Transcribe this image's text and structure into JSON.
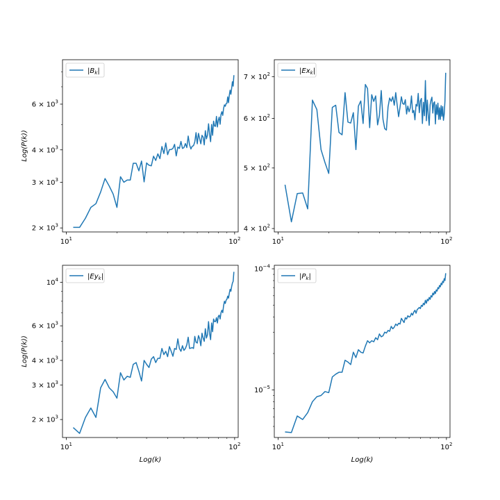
{
  "chart_data": [
    {
      "type": "line",
      "title": "",
      "xscale": "log",
      "yscale": "log",
      "xlim": [
        9.5,
        105
      ],
      "ylim": [
        1930,
        8900
      ],
      "xlabel": "",
      "ylabel": "Log(P(k))",
      "x_ticks": [
        {
          "value": 10,
          "label": "10^1"
        },
        {
          "value": 100,
          "label": "10^2"
        }
      ],
      "y_ticks": [
        {
          "value": 2000,
          "label": "2 × 10^3"
        },
        {
          "value": 3000,
          "label": "3 × 10^3"
        },
        {
          "value": 4000,
          "label": "4 × 10^3"
        },
        {
          "value": 6000,
          "label": "6 × 10^3"
        }
      ],
      "y_minor": [
        5000,
        7000,
        8000
      ],
      "legend": {
        "placement": "top-left",
        "entry": "|B_k|"
      },
      "series": [
        {
          "name": "|B_k|",
          "x": [
            11,
            12,
            13,
            14,
            15,
            16,
            17,
            18,
            19,
            20,
            21,
            22,
            23,
            24,
            25,
            26,
            27,
            28,
            29,
            30,
            31,
            32,
            33,
            34,
            35,
            36,
            37,
            38,
            39,
            40,
            41,
            42,
            43,
            44,
            45,
            46,
            47,
            48,
            49,
            50,
            51,
            52,
            53,
            54,
            55,
            56,
            57,
            58,
            59,
            60,
            61,
            62,
            63,
            64,
            65,
            66,
            67,
            68,
            69,
            70,
            71,
            72,
            73,
            74,
            75,
            76,
            77,
            78,
            79,
            80,
            81,
            82,
            83,
            84,
            85,
            86,
            87,
            88,
            89,
            90,
            91,
            92,
            93,
            94,
            95,
            96,
            97,
            98,
            99
          ],
          "y": [
            2010,
            2010,
            2180,
            2400,
            2480,
            2750,
            3100,
            2900,
            2700,
            2400,
            3150,
            3000,
            3060,
            3060,
            3550,
            3550,
            3320,
            3620,
            3010,
            3560,
            3490,
            3470,
            3780,
            3640,
            3860,
            3700,
            4120,
            3870,
            4250,
            3830,
            4010,
            4010,
            4050,
            4200,
            3790,
            4100,
            4050,
            4310,
            4050,
            4080,
            4230,
            4080,
            4520,
            4180,
            4030,
            4130,
            4150,
            4290,
            4660,
            4220,
            4630,
            4410,
            4220,
            4550,
            4480,
            4180,
            4740,
            4410,
            4560,
            5040,
            4590,
            4300,
            5010,
            4550,
            5160,
            4940,
            4930,
            5380,
            4900,
            5200,
            5350,
            5020,
            5470,
            5610,
            5430,
            5780,
            5960,
            5890,
            6030,
            6050,
            6400,
            6080,
            6500,
            6790,
            6550,
            6900,
            7320,
            7040,
            7760
          ]
        }
      ]
    },
    {
      "type": "line",
      "title": "",
      "xscale": "log",
      "yscale": "log",
      "xlim": [
        9.5,
        105
      ],
      "ylim": [
        395,
        745
      ],
      "xlabel": "",
      "ylabel": "",
      "x_ticks": [
        {
          "value": 10,
          "label": "10^1"
        },
        {
          "value": 100,
          "label": "10^2"
        }
      ],
      "y_ticks": [
        {
          "value": 400,
          "label": "4 × 10^2"
        },
        {
          "value": 500,
          "label": "5 × 10^2"
        },
        {
          "value": 600,
          "label": "6 × 10^2"
        },
        {
          "value": 700,
          "label": "7 × 10^2"
        }
      ],
      "y_minor": [],
      "legend": {
        "placement": "top-left",
        "entry": "|Ex_k|"
      },
      "series": [
        {
          "name": "|Ex_k|",
          "x": [
            11,
            12,
            13,
            14,
            15,
            16,
            17,
            18,
            19,
            20,
            21,
            22,
            23,
            24,
            25,
            26,
            27,
            28,
            29,
            30,
            31,
            32,
            33,
            34,
            35,
            36,
            37,
            38,
            39,
            40,
            41,
            42,
            43,
            44,
            45,
            46,
            47,
            48,
            49,
            50,
            51,
            52,
            53,
            54,
            55,
            56,
            57,
            58,
            59,
            60,
            61,
            62,
            63,
            64,
            65,
            66,
            67,
            68,
            69,
            70,
            71,
            72,
            73,
            74,
            75,
            76,
            77,
            78,
            79,
            80,
            81,
            82,
            83,
            84,
            85,
            86,
            87,
            88,
            89,
            90,
            91,
            92,
            93,
            94,
            95,
            96,
            97,
            98,
            99
          ],
          "y": [
            470,
            410,
            455,
            456,
            430,
            642,
            620,
            535,
            510,
            490,
            625,
            630,
            570,
            565,
            660,
            592,
            590,
            613,
            535,
            628,
            640,
            589,
            680,
            670,
            580,
            655,
            639,
            652,
            586,
            607,
            665,
            598,
            578,
            575,
            626,
            647,
            639,
            650,
            630,
            660,
            630,
            604,
            625,
            650,
            634,
            632,
            643,
            610,
            628,
            615,
            624,
            652,
            613,
            618,
            597,
            632,
            628,
            658,
            613,
            640,
            646,
            589,
            637,
            606,
            690,
            595,
            642,
            608,
            585,
            631,
            642,
            649,
            612,
            635,
            638,
            588,
            631,
            609,
            635,
            598,
            624,
            598,
            629,
            605,
            627,
            596,
            609,
            640,
            710
          ]
        }
      ]
    },
    {
      "type": "line",
      "title": "",
      "xscale": "log",
      "yscale": "log",
      "xlim": [
        9.5,
        105
      ],
      "ylim": [
        1620,
        12200
      ],
      "xlabel": "Log(k)",
      "ylabel": "Log(P(k))",
      "x_ticks": [
        {
          "value": 10,
          "label": "10^1"
        },
        {
          "value": 100,
          "label": "10^2"
        }
      ],
      "y_ticks": [
        {
          "value": 2000,
          "label": "2 × 10^3"
        },
        {
          "value": 3000,
          "label": "3 × 10^3"
        },
        {
          "value": 4000,
          "label": "4 × 10^3"
        },
        {
          "value": 6000,
          "label": "6 × 10^3"
        },
        {
          "value": 10000,
          "label": "10^4"
        }
      ],
      "y_minor": [
        5000,
        7000,
        8000,
        9000
      ],
      "legend": {
        "placement": "top-left",
        "entry": "|Ey_k|"
      },
      "series": [
        {
          "name": "|Ey_k|",
          "x": [
            11,
            12,
            13,
            14,
            15,
            16,
            17,
            18,
            19,
            20,
            21,
            22,
            23,
            24,
            25,
            26,
            27,
            28,
            29,
            30,
            31,
            32,
            33,
            34,
            35,
            36,
            37,
            38,
            39,
            40,
            41,
            42,
            43,
            44,
            45,
            46,
            47,
            48,
            49,
            50,
            51,
            52,
            53,
            54,
            55,
            56,
            57,
            58,
            59,
            60,
            61,
            62,
            63,
            64,
            65,
            66,
            67,
            68,
            69,
            70,
            71,
            72,
            73,
            74,
            75,
            76,
            77,
            78,
            79,
            80,
            81,
            82,
            83,
            84,
            85,
            86,
            87,
            88,
            89,
            90,
            91,
            92,
            93,
            94,
            95,
            96,
            97,
            98,
            99
          ],
          "y": [
            1820,
            1700,
            2050,
            2290,
            2050,
            2900,
            3200,
            2900,
            2770,
            2570,
            3460,
            3180,
            3320,
            3280,
            3820,
            3900,
            3520,
            3140,
            4000,
            3820,
            3680,
            4060,
            4180,
            3900,
            4100,
            4100,
            4600,
            4280,
            4450,
            4180,
            4700,
            4450,
            4200,
            4600,
            4550,
            5150,
            4600,
            4450,
            4750,
            4500,
            4600,
            4800,
            5250,
            4600,
            4620,
            4650,
            4600,
            5300,
            4950,
            4900,
            5350,
            5150,
            4750,
            5500,
            5200,
            5000,
            5800,
            5200,
            5400,
            6300,
            5500,
            5100,
            6200,
            5600,
            6500,
            6300,
            6300,
            6600,
            6200,
            6700,
            6800,
            6500,
            7000,
            7200,
            7000,
            7600,
            8000,
            7800,
            8100,
            8200,
            8500,
            8300,
            8800,
            9200,
            9000,
            9500,
            9900,
            10100,
            11300
          ]
        }
      ]
    },
    {
      "type": "line",
      "title": "",
      "xscale": "log",
      "yscale": "log",
      "xlim": [
        9.5,
        105
      ],
      "ylim": [
        4.05e-06,
        0.000107
      ],
      "xlabel": "Log(k)",
      "ylabel": "",
      "x_ticks": [
        {
          "value": 10,
          "label": "10^1"
        },
        {
          "value": 100,
          "label": "10^2"
        }
      ],
      "y_ticks": [
        {
          "value": 1e-05,
          "label": "10^−5"
        },
        {
          "value": 0.0001,
          "label": "10^−4"
        }
      ],
      "y_minor": [
        5e-06,
        6e-06,
        7e-06,
        8e-06,
        9e-06,
        2e-05,
        3e-05,
        4e-05,
        5e-05,
        6e-05,
        7e-05,
        8e-05,
        9e-05
      ],
      "legend": {
        "placement": "top-left",
        "entry": "|P_k|"
      },
      "series": [
        {
          "name": "|P_k|",
          "x": [
            11,
            12,
            13,
            14,
            15,
            16,
            17,
            18,
            19,
            20,
            21,
            22,
            23,
            24,
            25,
            26,
            27,
            28,
            29,
            30,
            31,
            32,
            33,
            34,
            35,
            36,
            37,
            38,
            39,
            40,
            41,
            42,
            43,
            44,
            45,
            46,
            47,
            48,
            49,
            50,
            51,
            52,
            53,
            54,
            55,
            56,
            57,
            58,
            59,
            60,
            61,
            62,
            63,
            64,
            65,
            66,
            67,
            68,
            69,
            70,
            71,
            72,
            73,
            74,
            75,
            76,
            77,
            78,
            79,
            80,
            81,
            82,
            83,
            84,
            85,
            86,
            87,
            88,
            89,
            90,
            91,
            92,
            93,
            94,
            95,
            96,
            97,
            98,
            99
          ],
          "y": [
            4.5e-06,
            4.45e-06,
            6.1e-06,
            5.7e-06,
            6.5e-06,
            8e-06,
            8.8e-06,
            9e-06,
            9.7e-06,
            9.5e-06,
            1.28e-05,
            1.35e-05,
            1.4e-05,
            1.4e-05,
            1.76e-05,
            1.7e-05,
            1.62e-05,
            2.05e-05,
            1.85e-05,
            2.15e-05,
            2.05e-05,
            2.02e-05,
            2.3e-05,
            2.55e-05,
            2.45e-05,
            2.55e-05,
            2.5e-05,
            2.7e-05,
            2.6e-05,
            2.9e-05,
            2.75e-05,
            2.8e-05,
            3e-05,
            2.95e-05,
            3.1e-05,
            3.05e-05,
            3.35e-05,
            3.2e-05,
            3.3e-05,
            3.5e-05,
            3.4e-05,
            3.55e-05,
            3.5e-05,
            3.9e-05,
            3.75e-05,
            3.6e-05,
            3.95e-05,
            3.85e-05,
            4.1e-05,
            4e-05,
            4.05e-05,
            4.3e-05,
            4.15e-05,
            4.4e-05,
            4.55e-05,
            4.3e-05,
            4.6e-05,
            4.7e-05,
            4.8e-05,
            4.7e-05,
            5e-05,
            4.9e-05,
            5.2e-05,
            5.05e-05,
            5.5e-05,
            5.2e-05,
            5.6e-05,
            5.45e-05,
            5.8e-05,
            5.6e-05,
            6e-05,
            5.85e-05,
            6.3e-05,
            6.1e-05,
            6.5e-05,
            6.25e-05,
            6.7e-05,
            6.55e-05,
            7e-05,
            6.85e-05,
            7.3e-05,
            7.1e-05,
            7.6e-05,
            7.4e-05,
            7.9e-05,
            7.7e-05,
            8.3e-05,
            8e-05,
            9.2e-05
          ]
        }
      ]
    }
  ]
}
